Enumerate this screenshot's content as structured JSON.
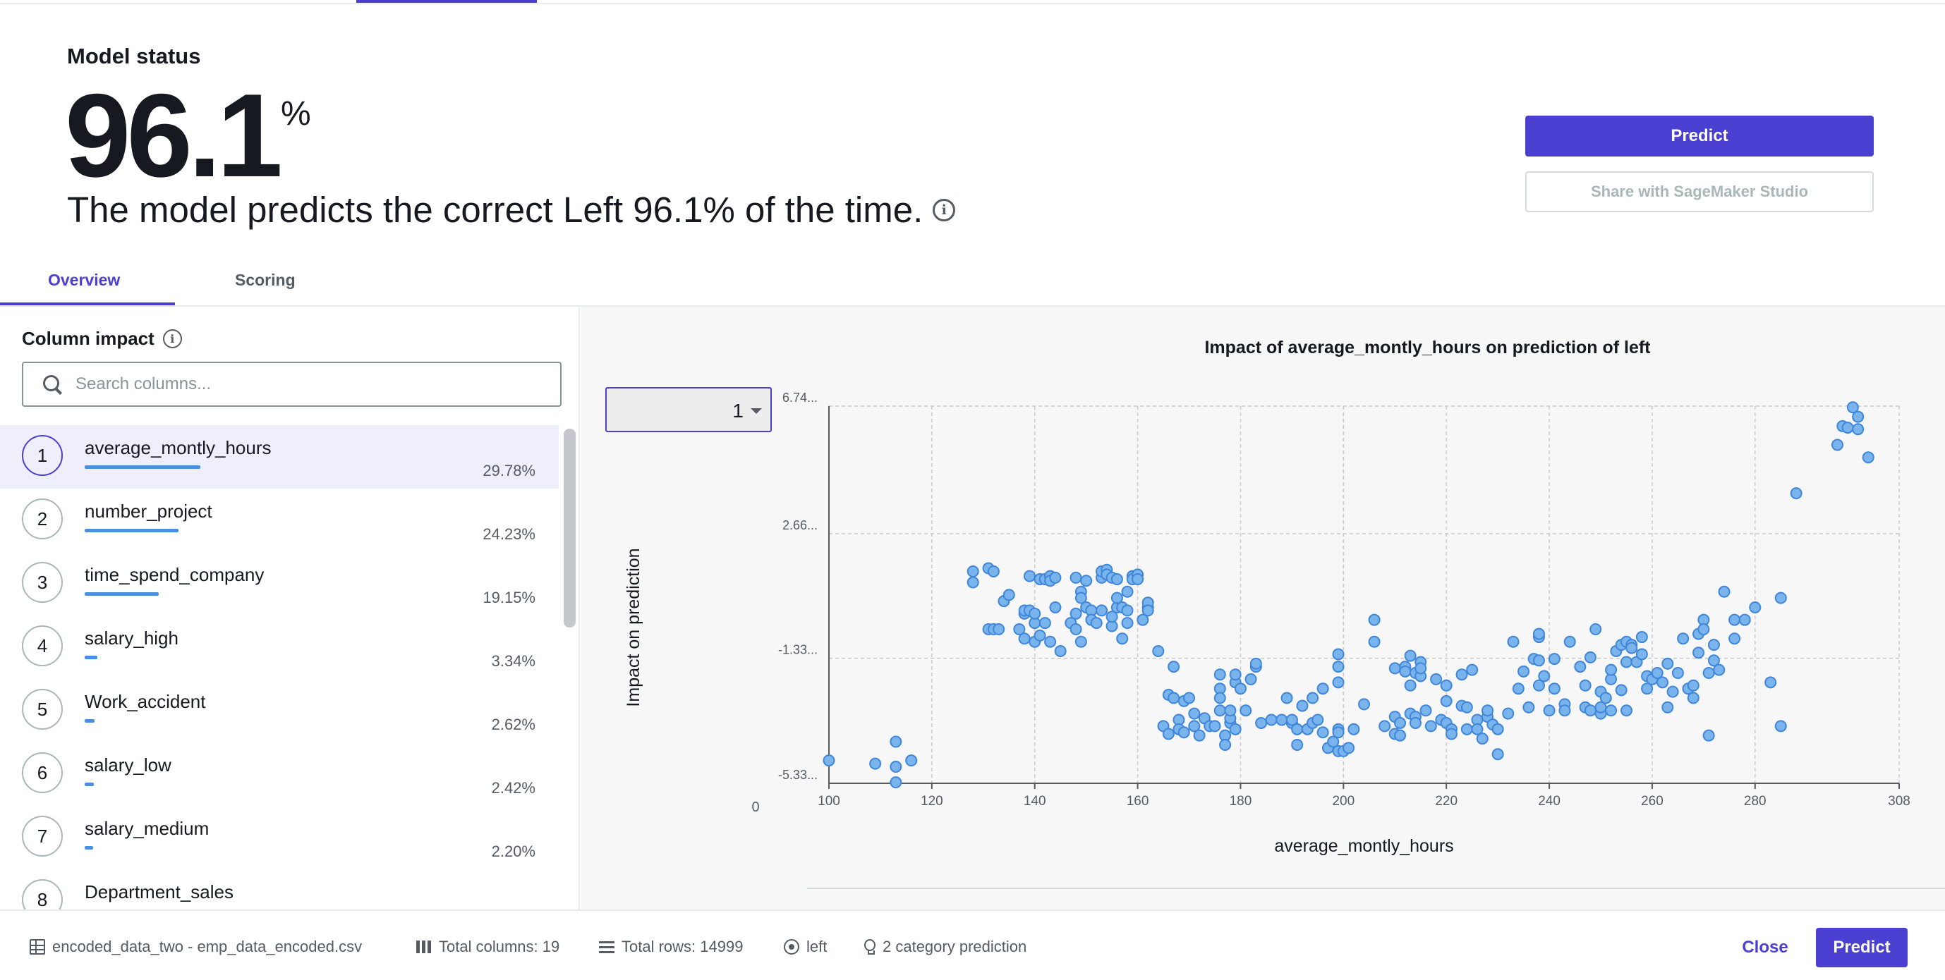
{
  "model_status": {
    "label": "Model status",
    "value": "96.1",
    "unit": "%",
    "description": "The model predicts the correct Left 96.1% of the time."
  },
  "actions": {
    "predict_label": "Predict",
    "share_label": "Share with SageMaker Studio"
  },
  "tabs": [
    {
      "label": "Overview",
      "active": true
    },
    {
      "label": "Scoring",
      "active": false
    }
  ],
  "column_impact": {
    "title": "Column impact",
    "search_placeholder": "Search columns...",
    "items": [
      {
        "rank": "1",
        "name": "average_montly_hours",
        "percent": "29.78%",
        "value": 29.78,
        "selected": true
      },
      {
        "rank": "2",
        "name": "number_project",
        "percent": "24.23%",
        "value": 24.23,
        "selected": false
      },
      {
        "rank": "3",
        "name": "time_spend_company",
        "percent": "19.15%",
        "value": 19.15,
        "selected": false
      },
      {
        "rank": "4",
        "name": "salary_high",
        "percent": "3.34%",
        "value": 3.34,
        "selected": false
      },
      {
        "rank": "5",
        "name": "Work_accident",
        "percent": "2.62%",
        "value": 2.62,
        "selected": false
      },
      {
        "rank": "6",
        "name": "salary_low",
        "percent": "2.42%",
        "value": 2.42,
        "selected": false
      },
      {
        "rank": "7",
        "name": "salary_medium",
        "percent": "2.20%",
        "value": 2.2,
        "selected": false
      },
      {
        "rank": "8",
        "name": "Department_sales",
        "percent": "",
        "value": 0,
        "selected": false
      }
    ]
  },
  "class_selector": {
    "value": "1"
  },
  "colors": {
    "accent": "#4a3fd1",
    "bar": "#4a8fe2",
    "point_fill": "#7ab4ec",
    "point_stroke": "#3f86da"
  },
  "chart_data": {
    "type": "scatter",
    "title": "Impact of average_montly_hours on prediction of left",
    "xlabel": "average_montly_hours",
    "ylabel": "Impact on prediction",
    "xlim": [
      100,
      308
    ],
    "ylim": [
      -5.33,
      6.74
    ],
    "xticks": [
      100,
      120,
      140,
      160,
      180,
      200,
      220,
      240,
      260,
      280,
      308
    ],
    "xtick_labels": [
      "100",
      "120",
      "140",
      "160",
      "180",
      "200",
      "220",
      "240",
      "260",
      "280",
      "308"
    ],
    "yticks": [
      -5.33,
      -1.33,
      2.66,
      6.74
    ],
    "ytick_labels": [
      "-5.33...",
      "-1.33...",
      "2.66...",
      "6.74..."
    ],
    "corner_label": "0",
    "grid": true,
    "points": [
      [
        100,
        -4.6
      ],
      [
        109,
        -4.7
      ],
      [
        113,
        -4.8
      ],
      [
        113,
        -5.3
      ],
      [
        113,
        -4.0
      ],
      [
        116,
        -4.6
      ],
      [
        128,
        1.45
      ],
      [
        128,
        1.1
      ],
      [
        131,
        1.55
      ],
      [
        132,
        1.45
      ],
      [
        131,
        -0.4
      ],
      [
        132,
        -0.4
      ],
      [
        133,
        -0.4
      ],
      [
        134,
        0.5
      ],
      [
        135,
        0.7
      ],
      [
        137,
        -0.4
      ],
      [
        138,
        0.1
      ],
      [
        138,
        -0.7
      ],
      [
        138,
        0.2
      ],
      [
        139,
        1.3
      ],
      [
        139,
        0.2
      ],
      [
        140,
        -0.2
      ],
      [
        140,
        -0.8
      ],
      [
        140,
        0.1
      ],
      [
        141,
        1.2
      ],
      [
        141,
        -0.6
      ],
      [
        142,
        -0.2
      ],
      [
        142,
        1.2
      ],
      [
        143,
        -0.8
      ],
      [
        143,
        1.3
      ],
      [
        143,
        1.15
      ],
      [
        144,
        0.3
      ],
      [
        144,
        1.25
      ],
      [
        145,
        -1.1
      ],
      [
        147,
        -0.2
      ],
      [
        148,
        0.1
      ],
      [
        148,
        -0.4
      ],
      [
        148,
        1.25
      ],
      [
        149,
        0.8
      ],
      [
        149,
        0.6
      ],
      [
        149,
        -0.8
      ],
      [
        150,
        1.15
      ],
      [
        150,
        0.3
      ],
      [
        151,
        0.2
      ],
      [
        151,
        -0.1
      ],
      [
        152,
        -0.2
      ],
      [
        153,
        1.25
      ],
      [
        153,
        0.2
      ],
      [
        153,
        1.45
      ],
      [
        154,
        1.5
      ],
      [
        154,
        1.35
      ],
      [
        155,
        -0.3
      ],
      [
        155,
        0.0
      ],
      [
        155,
        1.25
      ],
      [
        156,
        1.2
      ],
      [
        156,
        0.3
      ],
      [
        156,
        0.6
      ],
      [
        157,
        -0.7
      ],
      [
        157,
        0.3
      ],
      [
        158,
        0.2
      ],
      [
        158,
        -0.2
      ],
      [
        158,
        0.8
      ],
      [
        159,
        1.3
      ],
      [
        159,
        1.2
      ],
      [
        160,
        1.35
      ],
      [
        160,
        1.2
      ],
      [
        161,
        -0.1
      ],
      [
        162,
        0.3
      ],
      [
        162,
        0.45
      ],
      [
        162,
        0.2
      ],
      [
        164,
        -1.1
      ],
      [
        165,
        -3.5
      ],
      [
        166,
        -3.75
      ],
      [
        166,
        -2.5
      ],
      [
        167,
        -1.6
      ],
      [
        167,
        -2.6
      ],
      [
        168,
        -3.3
      ],
      [
        168,
        -3.6
      ],
      [
        169,
        -3.7
      ],
      [
        169,
        -2.7
      ],
      [
        170,
        -2.6
      ],
      [
        171,
        -3.1
      ],
      [
        171,
        -3.5
      ],
      [
        172,
        -3.8
      ],
      [
        173,
        -3.25
      ],
      [
        174,
        -3.5
      ],
      [
        175,
        -3.5
      ],
      [
        176,
        -1.85
      ],
      [
        176,
        -2.3
      ],
      [
        176,
        -2.6
      ],
      [
        176,
        -3.0
      ],
      [
        177,
        -3.8
      ],
      [
        177,
        -4.1
      ],
      [
        178,
        -3.4
      ],
      [
        178,
        -3.25
      ],
      [
        178,
        -3.0
      ],
      [
        179,
        -3.6
      ],
      [
        179,
        -2.1
      ],
      [
        179,
        -1.85
      ],
      [
        180,
        -2.3
      ],
      [
        181,
        -3.0
      ],
      [
        182,
        -2.0
      ],
      [
        183,
        -1.6
      ],
      [
        183,
        -1.5
      ],
      [
        184,
        -3.4
      ],
      [
        186,
        -3.3
      ],
      [
        188,
        -3.3
      ],
      [
        189,
        -2.6
      ],
      [
        190,
        -3.4
      ],
      [
        190,
        -3.3
      ],
      [
        191,
        -3.6
      ],
      [
        191,
        -4.1
      ],
      [
        192,
        -2.85
      ],
      [
        193,
        -3.6
      ],
      [
        194,
        -3.4
      ],
      [
        194,
        -2.6
      ],
      [
        195,
        -3.3
      ],
      [
        196,
        -2.3
      ],
      [
        196,
        -3.7
      ],
      [
        197,
        -4.2
      ],
      [
        198,
        -4.0
      ],
      [
        199,
        -4.3
      ],
      [
        199,
        -3.6
      ],
      [
        199,
        -2.1
      ],
      [
        199,
        -1.6
      ],
      [
        199,
        -1.2
      ],
      [
        199,
        -3.7
      ],
      [
        200,
        -4.3
      ],
      [
        201,
        -4.2
      ],
      [
        202,
        -3.6
      ],
      [
        204,
        -2.8
      ],
      [
        206,
        -0.1
      ],
      [
        206,
        -0.8
      ],
      [
        208,
        -3.5
      ],
      [
        210,
        -3.2
      ],
      [
        210,
        -3.75
      ],
      [
        210,
        -1.65
      ],
      [
        211,
        -3.4
      ],
      [
        211,
        -3.8
      ],
      [
        212,
        -1.6
      ],
      [
        212,
        -1.75
      ],
      [
        213,
        -3.1
      ],
      [
        213,
        -2.2
      ],
      [
        213,
        -1.25
      ],
      [
        214,
        -3.2
      ],
      [
        214,
        -1.8
      ],
      [
        214,
        -3.4
      ],
      [
        215,
        -1.9
      ],
      [
        215,
        -1.45
      ],
      [
        215,
        -1.65
      ],
      [
        216,
        -3.0
      ],
      [
        217,
        -3.5
      ],
      [
        218,
        -2.0
      ],
      [
        219,
        -3.3
      ],
      [
        220,
        -2.2
      ],
      [
        220,
        -2.7
      ],
      [
        220,
        -3.4
      ],
      [
        221,
        -3.6
      ],
      [
        221,
        -3.75
      ],
      [
        223,
        -2.85
      ],
      [
        223,
        -1.85
      ],
      [
        224,
        -3.6
      ],
      [
        224,
        -2.9
      ],
      [
        225,
        -1.7
      ],
      [
        226,
        -3.3
      ],
      [
        226,
        -3.6
      ],
      [
        227,
        -3.9
      ],
      [
        228,
        -3.2
      ],
      [
        228,
        -3.0
      ],
      [
        229,
        -3.45
      ],
      [
        230,
        -4.4
      ],
      [
        230,
        -3.6
      ],
      [
        232,
        -3.1
      ],
      [
        233,
        -0.8
      ],
      [
        234,
        -2.3
      ],
      [
        235,
        -1.75
      ],
      [
        236,
        -2.9
      ],
      [
        237,
        -1.35
      ],
      [
        238,
        -2.2
      ],
      [
        238,
        -0.65
      ],
      [
        238,
        -0.55
      ],
      [
        238,
        -1.4
      ],
      [
        239,
        -1.9
      ],
      [
        240,
        -3.0
      ],
      [
        241,
        -1.35
      ],
      [
        241,
        -2.3
      ],
      [
        243,
        -2.8
      ],
      [
        243,
        -3.0
      ],
      [
        244,
        -0.8
      ],
      [
        246,
        -1.6
      ],
      [
        247,
        -2.2
      ],
      [
        247,
        -2.9
      ],
      [
        248,
        -3.0
      ],
      [
        248,
        -1.3
      ],
      [
        249,
        -0.4
      ],
      [
        250,
        -3.1
      ],
      [
        250,
        -2.4
      ],
      [
        250,
        -2.9
      ],
      [
        251,
        -2.6
      ],
      [
        252,
        -2.0
      ],
      [
        252,
        -1.7
      ],
      [
        252,
        -3.0
      ],
      [
        253,
        -1.1
      ],
      [
        254,
        -0.9
      ],
      [
        254,
        -2.35
      ],
      [
        255,
        -0.8
      ],
      [
        255,
        -1.45
      ],
      [
        255,
        -3.0
      ],
      [
        256,
        -0.9
      ],
      [
        256,
        -1.0
      ],
      [
        257,
        -1.45
      ],
      [
        258,
        -0.65
      ],
      [
        258,
        -1.2
      ],
      [
        259,
        -1.9
      ],
      [
        259,
        -2.3
      ],
      [
        260,
        -2.0
      ],
      [
        261,
        -1.8
      ],
      [
        262,
        -2.1
      ],
      [
        263,
        -2.9
      ],
      [
        263,
        -1.5
      ],
      [
        264,
        -2.4
      ],
      [
        265,
        -1.8
      ],
      [
        266,
        -0.7
      ],
      [
        267,
        -2.3
      ],
      [
        268,
        -2.6
      ],
      [
        268,
        -2.2
      ],
      [
        269,
        -1.15
      ],
      [
        269,
        -0.55
      ],
      [
        270,
        -0.1
      ],
      [
        270,
        -0.4
      ],
      [
        271,
        -1.8
      ],
      [
        271,
        -3.8
      ],
      [
        272,
        -1.4
      ],
      [
        272,
        -0.9
      ],
      [
        273,
        -1.7
      ],
      [
        274,
        0.8
      ],
      [
        276,
        -0.1
      ],
      [
        276,
        -0.7
      ],
      [
        278,
        -0.1
      ],
      [
        280,
        0.3
      ],
      [
        283,
        -2.1
      ],
      [
        285,
        -3.5
      ],
      [
        285,
        0.6
      ],
      [
        288,
        3.95
      ],
      [
        296,
        5.5
      ],
      [
        297,
        6.1
      ],
      [
        298,
        6.05
      ],
      [
        299,
        6.7
      ],
      [
        300,
        6.4
      ],
      [
        300,
        6.0
      ],
      [
        302,
        5.1
      ]
    ]
  },
  "footer": {
    "dataset": "encoded_data_two - emp_data_encoded.csv",
    "columns": "Total columns: 19",
    "rows": "Total rows: 14999",
    "target": "left",
    "prediction_type": "2 category prediction",
    "close_label": "Close",
    "predict_label": "Predict"
  }
}
